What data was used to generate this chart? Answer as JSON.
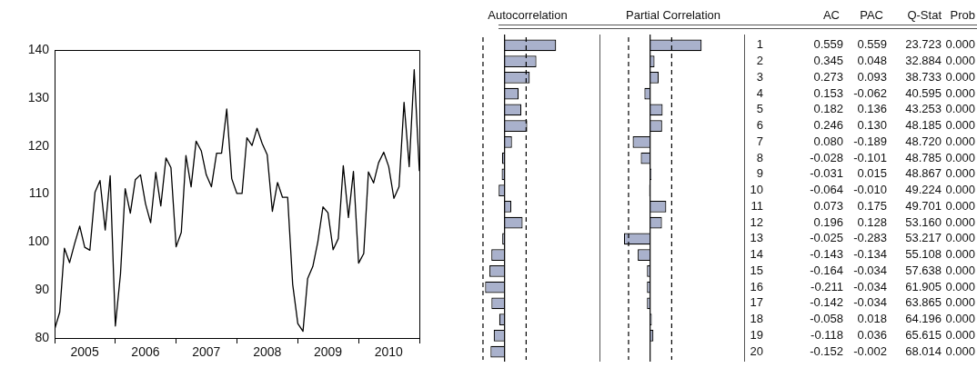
{
  "chart_data": [
    {
      "type": "line",
      "color": "#000000",
      "x": [
        "2005-01",
        "2005-02",
        "2005-03",
        "2005-04",
        "2005-05",
        "2005-06",
        "2005-07",
        "2005-08",
        "2005-09",
        "2005-10",
        "2005-11",
        "2005-12",
        "2006-01",
        "2006-02",
        "2006-03",
        "2006-04",
        "2006-05",
        "2006-06",
        "2006-07",
        "2006-08",
        "2006-09",
        "2006-10",
        "2006-11",
        "2006-12",
        "2007-01",
        "2007-02",
        "2007-03",
        "2007-04",
        "2007-05",
        "2007-06",
        "2007-07",
        "2007-08",
        "2007-09",
        "2007-10",
        "2007-11",
        "2007-12",
        "2008-01",
        "2008-02",
        "2008-03",
        "2008-04",
        "2008-05",
        "2008-06",
        "2008-07",
        "2008-08",
        "2008-09",
        "2008-10",
        "2008-11",
        "2008-12",
        "2009-01",
        "2009-02",
        "2009-03",
        "2009-04",
        "2009-05",
        "2009-06",
        "2009-07",
        "2009-08",
        "2009-09",
        "2009-10",
        "2009-11",
        "2009-12",
        "2010-01",
        "2010-02",
        "2010-03",
        "2010-04",
        "2010-05",
        "2010-06",
        "2010-07",
        "2010-08",
        "2010-09",
        "2010-10",
        "2010-11",
        "2010-12",
        "2011-01"
      ],
      "values": [
        81.8,
        85.4,
        98.7,
        95.7,
        99.6,
        103.3,
        98.9,
        98.3,
        110.4,
        112.8,
        102.5,
        113.8,
        82.5,
        93.4,
        111.1,
        106.0,
        113.0,
        114.0,
        108.0,
        104.0,
        114.5,
        107.5,
        117.5,
        115.5,
        99.0,
        102.0,
        118.0,
        111.5,
        121.0,
        119.0,
        114.0,
        111.5,
        118.5,
        118.5,
        127.7,
        113.2,
        110.1,
        110.1,
        121.7,
        120.1,
        123.7,
        120.5,
        118.2,
        106.4,
        112.4,
        109.3,
        109.3,
        91.2,
        83.0,
        81.4,
        92.4,
        94.9,
        100.0,
        107.3,
        106.1,
        98.4,
        100.7,
        115.9,
        105.1,
        114.7,
        95.6,
        97.6,
        114.6,
        112.3,
        116.5,
        118.7,
        115.7,
        109.1,
        111.5,
        129.1,
        115.7,
        135.9,
        114.8
      ],
      "xlim": [
        "2005-01",
        "2011-01"
      ],
      "xticks": [
        {
          "value": "2005-01",
          "label": null
        },
        {
          "value": "2005-07",
          "label": "2005"
        },
        {
          "value": "2006-01",
          "label": null
        },
        {
          "value": "2006-07",
          "label": "2006"
        },
        {
          "value": "2007-01",
          "label": null
        },
        {
          "value": "2007-07",
          "label": "2007"
        },
        {
          "value": "2008-01",
          "label": null
        },
        {
          "value": "2008-07",
          "label": "2008"
        },
        {
          "value": "2009-01",
          "label": null
        },
        {
          "value": "2009-07",
          "label": "2009"
        },
        {
          "value": "2010-01",
          "label": null
        },
        {
          "value": "2010-07",
          "label": "2010"
        },
        {
          "value": "2011-01",
          "label": null
        }
      ],
      "ylim": [
        80,
        140
      ],
      "yticks": [
        80,
        90,
        100,
        110,
        120,
        130,
        140
      ]
    },
    {
      "type": "bar",
      "orientation": "horizontal",
      "title": "Autocorrelation",
      "annotations": [
        "AC"
      ],
      "color": "#a9b1cc",
      "tick_labels": "y",
      "data_labels": true,
      "value_labels": [
        "0.559",
        "0.345",
        "0.273",
        "0.153",
        "0.182",
        "0.246",
        "0.080",
        "-0.028",
        "-0.031",
        "-0.064",
        "0.073",
        "0.196",
        "-0.025",
        "-0.143",
        "-0.164",
        "-0.211",
        "-0.142",
        "-0.058",
        "-0.118",
        "-0.152"
      ],
      "categories": [
        "1",
        "2",
        "3",
        "4",
        "5",
        "6",
        "7",
        "8",
        "9",
        "10",
        "11",
        "12",
        "13",
        "14",
        "15",
        "16",
        "17",
        "18",
        "19",
        "20"
      ],
      "values": [
        0.559,
        0.345,
        0.273,
        0.153,
        0.182,
        0.246,
        0.08,
        -0.028,
        -0.031,
        -0.064,
        0.073,
        0.196,
        -0.025,
        -0.143,
        -0.164,
        -0.211,
        -0.142,
        -0.058,
        -0.118,
        -0.152
      ],
      "ref_lines": [
        {
          "axis": "x",
          "value": -0.234,
          "line_style": "dashed",
          "color": "#000000"
        },
        {
          "axis": "x",
          "value": 0.234,
          "line_style": "dashed",
          "color": "#000000"
        }
      ]
    },
    {
      "type": "bar",
      "orientation": "horizontal",
      "title": "Partial Correlation",
      "annotations": [
        "PAC"
      ],
      "color": "#a9b1cc",
      "tick_labels": false,
      "data_labels": true,
      "value_labels": [
        "0.559",
        "0.048",
        "0.093",
        "-0.062",
        "0.136",
        "0.130",
        "-0.189",
        "-0.101",
        "0.015",
        "-0.010",
        "0.175",
        "0.128",
        "-0.283",
        "-0.134",
        "-0.034",
        "-0.034",
        "-0.034",
        "0.018",
        "0.036",
        "-0.002"
      ],
      "categories": [
        null,
        null,
        null,
        null,
        null,
        null,
        null,
        null,
        null,
        null,
        null,
        null,
        null,
        null,
        null,
        null,
        null,
        null,
        null,
        null
      ],
      "values": [
        0.559,
        0.048,
        0.093,
        -0.062,
        0.136,
        0.13,
        -0.189,
        -0.101,
        0.015,
        -0.01,
        0.175,
        0.128,
        -0.283,
        -0.134,
        -0.034,
        -0.034,
        -0.034,
        0.018,
        0.036,
        -0.002
      ],
      "ref_lines": [
        {
          "axis": "x",
          "value": -0.234,
          "line_style": "dashed",
          "color": "#000000"
        },
        {
          "axis": "x",
          "value": 0.234,
          "line_style": "dashed",
          "color": "#000000"
        }
      ]
    },
    {
      "type": "other",
      "annotations": [
        "Q-Stat",
        "23.723",
        "32.884",
        "38.733",
        "40.595",
        "43.253",
        "48.185",
        "48.720",
        "48.785",
        "48.867",
        "49.224",
        "49.701",
        "53.160",
        "53.217",
        "55.108",
        "57.638",
        "61.905",
        "63.865",
        "64.196",
        "65.615",
        "68.014",
        "Prob",
        "0.000",
        "0.000",
        "0.000",
        "0.000",
        "0.000",
        "0.000",
        "0.000",
        "0.000",
        "0.000",
        "0.000",
        "0.000",
        "0.000",
        "0.000",
        "0.000",
        "0.000",
        "0.000",
        "0.000",
        "0.000",
        "0.000",
        "0.000"
      ]
    }
  ]
}
